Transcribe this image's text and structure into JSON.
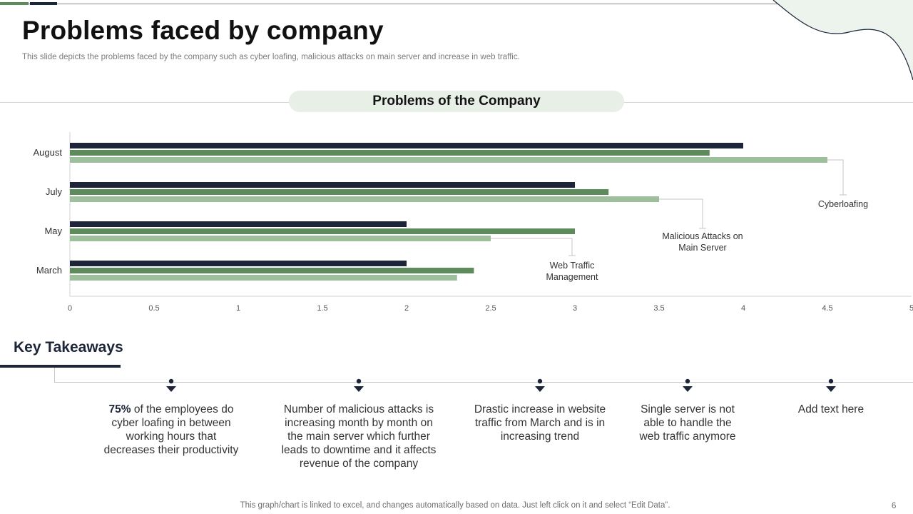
{
  "slide": {
    "title": "Problems faced by company",
    "subtitle": "This slide depicts the problems faced by the company such as cyber loafing, malicious attacks on main server and increase in web traffic.",
    "section_title": "Problems of the Company",
    "footer_note": "This graph/chart is linked to excel,  and changes automatically based on data. Just left click on it and select “Edit Data”.",
    "page_number": "6"
  },
  "colors": {
    "navy": "#1d2539",
    "green": "#5e8b5c",
    "light_green": "#9dbf9b",
    "pill_bg": "#e7efe7"
  },
  "chart_data": {
    "type": "bar",
    "orientation": "horizontal",
    "title": "Problems of the Company",
    "categories": [
      "March",
      "May",
      "July",
      "August"
    ],
    "series": [
      {
        "name": "Cyberloafing",
        "color": "#1d2539",
        "values": [
          2,
          2,
          3,
          4
        ]
      },
      {
        "name": "Malicious Attacks on Main Server",
        "color": "#5e8b5c",
        "values": [
          2.4,
          3,
          3.2,
          3.8
        ]
      },
      {
        "name": "Web Traffic Management",
        "color": "#9dbf9b",
        "values": [
          2.3,
          2.5,
          3.5,
          4.5
        ]
      }
    ],
    "xlim": [
      0,
      5
    ],
    "x_ticks": [
      "0",
      "0.5",
      "1",
      "1.5",
      "2",
      "2.5",
      "3",
      "3.5",
      "4",
      "4.5",
      "5"
    ],
    "grid": false,
    "callouts": [
      {
        "label": "Cyberloafing",
        "category": "August",
        "series": "Web Traffic Management"
      },
      {
        "label": "Malicious Attacks on Main Server",
        "category": "July",
        "series": "Web Traffic Management"
      },
      {
        "label": "Web Traffic Management",
        "category": "May",
        "series": "Web Traffic Management"
      }
    ]
  },
  "key_takeaways": {
    "title": "Key Takeaways",
    "items": [
      {
        "bold": "75%",
        "text": " of the employees do cyber loafing in between working hours that decreases their productivity"
      },
      {
        "bold": "",
        "text": "Number of malicious attacks is increasing month by month on the main server which further leads to downtime and it affects revenue  of the company"
      },
      {
        "bold": "",
        "text": "Drastic increase in website traffic from March and is in increasing trend"
      },
      {
        "bold": "",
        "text": "Single server is not able to handle the web traffic anymore"
      },
      {
        "bold": "",
        "text": "Add text here"
      }
    ]
  }
}
